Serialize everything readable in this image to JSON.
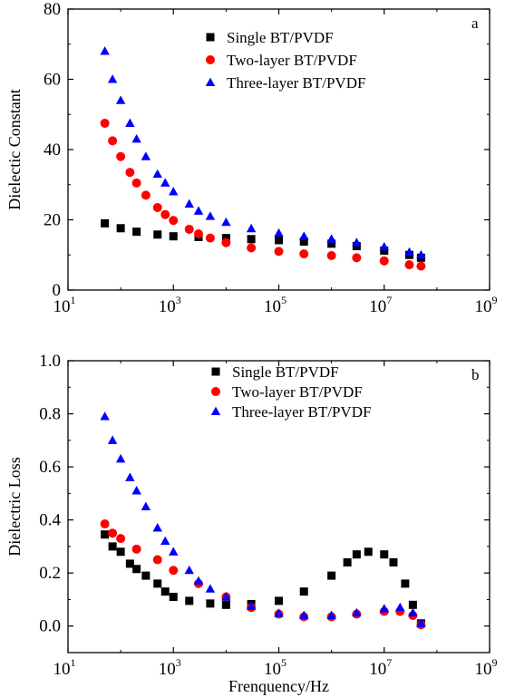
{
  "chart_data": [
    {
      "type": "scatter",
      "panel_label": "a",
      "xlabel": "",
      "ylabel": "Dielectic Constant",
      "xscale": "log",
      "xlim": [
        10,
        1000000000
      ],
      "ylim": [
        0,
        80
      ],
      "xticks": [
        {
          "base": "10",
          "exp": "1",
          "value": 10
        },
        {
          "base": "10",
          "exp": "3",
          "value": 1000
        },
        {
          "base": "10",
          "exp": "5",
          "value": 100000
        },
        {
          "base": "10",
          "exp": "7",
          "value": 10000000
        },
        {
          "base": "10",
          "exp": "9",
          "value": 1000000000
        }
      ],
      "yticks": [
        {
          "label": "0",
          "value": 0
        },
        {
          "label": "20",
          "value": 20
        },
        {
          "label": "40",
          "value": 40
        },
        {
          "label": "60",
          "value": 60
        },
        {
          "label": "80",
          "value": 80
        }
      ],
      "grid": false,
      "legend_position": "top-center",
      "series": [
        {
          "name": "Single BT/PVDF",
          "marker": "square",
          "color": "#000000",
          "points": [
            [
              50,
              19.0
            ],
            [
              100,
              17.6
            ],
            [
              200,
              16.6
            ],
            [
              500,
              15.8
            ],
            [
              1000,
              15.3
            ],
            [
              3000,
              15.1
            ],
            [
              10000,
              14.8
            ],
            [
              30000,
              14.5
            ],
            [
              100000,
              14.2
            ],
            [
              300000,
              13.8
            ],
            [
              1000000,
              13.2
            ],
            [
              3000000,
              12.5
            ],
            [
              10000000,
              11.2
            ],
            [
              30000000,
              10.0
            ],
            [
              50000000,
              9.2
            ]
          ]
        },
        {
          "name": "Two-layer BT/PVDF",
          "marker": "circle",
          "color": "#ff0000",
          "points": [
            [
              50,
              47.5
            ],
            [
              70,
              42.5
            ],
            [
              100,
              38.0
            ],
            [
              150,
              33.5
            ],
            [
              200,
              30.5
            ],
            [
              300,
              27.0
            ],
            [
              500,
              23.5
            ],
            [
              700,
              21.5
            ],
            [
              1000,
              19.8
            ],
            [
              2000,
              17.3
            ],
            [
              3000,
              16.0
            ],
            [
              5000,
              14.8
            ],
            [
              10000,
              13.5
            ],
            [
              30000,
              12.0
            ],
            [
              100000,
              11.0
            ],
            [
              300000,
              10.3
            ],
            [
              1000000,
              9.8
            ],
            [
              3000000,
              9.2
            ],
            [
              10000000,
              8.3
            ],
            [
              30000000,
              7.2
            ],
            [
              50000000,
              6.8
            ]
          ]
        },
        {
          "name": "Three-layer BT/PVDF",
          "marker": "triangle",
          "color": "#0000ff",
          "points": [
            [
              50,
              68.0
            ],
            [
              70,
              60.0
            ],
            [
              100,
              54.0
            ],
            [
              150,
              47.5
            ],
            [
              200,
              43.0
            ],
            [
              300,
              38.0
            ],
            [
              500,
              33.0
            ],
            [
              700,
              30.5
            ],
            [
              1000,
              28.0
            ],
            [
              2000,
              24.5
            ],
            [
              3000,
              22.5
            ],
            [
              5000,
              21.0
            ],
            [
              10000,
              19.3
            ],
            [
              30000,
              17.5
            ],
            [
              100000,
              16.2
            ],
            [
              300000,
              15.3
            ],
            [
              1000000,
              14.5
            ],
            [
              3000000,
              13.5
            ],
            [
              10000000,
              12.3
            ],
            [
              30000000,
              10.8
            ],
            [
              50000000,
              10.0
            ]
          ]
        }
      ]
    },
    {
      "type": "scatter",
      "panel_label": "b",
      "xlabel": "Frenquency/Hz",
      "ylabel": "Dielectric Loss",
      "xscale": "log",
      "xlim": [
        10,
        1000000000
      ],
      "ylim": [
        -0.1,
        1.0
      ],
      "xticks": [
        {
          "base": "10",
          "exp": "1",
          "value": 10
        },
        {
          "base": "10",
          "exp": "3",
          "value": 1000
        },
        {
          "base": "10",
          "exp": "5",
          "value": 100000
        },
        {
          "base": "10",
          "exp": "7",
          "value": 10000000
        },
        {
          "base": "10",
          "exp": "9",
          "value": 1000000000
        }
      ],
      "yticks": [
        {
          "label": "0.0",
          "value": 0.0
        },
        {
          "label": "0.2",
          "value": 0.2
        },
        {
          "label": "0.4",
          "value": 0.4
        },
        {
          "label": "0.6",
          "value": 0.6
        },
        {
          "label": "0.8",
          "value": 0.8
        },
        {
          "label": "1.0",
          "value": 1.0
        }
      ],
      "grid": false,
      "legend_position": "top-center",
      "series": [
        {
          "name": "Single BT/PVDF",
          "marker": "square",
          "color": "#000000",
          "points": [
            [
              50,
              0.345
            ],
            [
              70,
              0.3
            ],
            [
              100,
              0.28
            ],
            [
              150,
              0.235
            ],
            [
              200,
              0.215
            ],
            [
              300,
              0.19
            ],
            [
              500,
              0.16
            ],
            [
              700,
              0.13
            ],
            [
              1000,
              0.11
            ],
            [
              2000,
              0.095
            ],
            [
              5000,
              0.085
            ],
            [
              10000,
              0.08
            ],
            [
              30000,
              0.083
            ],
            [
              100000,
              0.095
            ],
            [
              300000,
              0.13
            ],
            [
              1000000,
              0.19
            ],
            [
              2000000,
              0.24
            ],
            [
              3000000,
              0.27
            ],
            [
              5000000,
              0.28
            ],
            [
              10000000,
              0.27
            ],
            [
              15000000,
              0.24
            ],
            [
              25000000,
              0.16
            ],
            [
              35000000,
              0.08
            ],
            [
              50000000,
              0.01
            ]
          ]
        },
        {
          "name": "Two-layer BT/PVDF",
          "marker": "circle",
          "color": "#ff0000",
          "points": [
            [
              50,
              0.385
            ],
            [
              70,
              0.35
            ],
            [
              100,
              0.33
            ],
            [
              200,
              0.29
            ],
            [
              500,
              0.25
            ],
            [
              1000,
              0.21
            ],
            [
              3000,
              0.16
            ],
            [
              10000,
              0.11
            ],
            [
              30000,
              0.07
            ],
            [
              100000,
              0.045
            ],
            [
              300000,
              0.035
            ],
            [
              1000000,
              0.035
            ],
            [
              3000000,
              0.045
            ],
            [
              10000000,
              0.055
            ],
            [
              20000000,
              0.055
            ],
            [
              35000000,
              0.04
            ],
            [
              50000000,
              0.005
            ]
          ]
        },
        {
          "name": "Three-layer BT/PVDF",
          "marker": "triangle",
          "color": "#0000ff",
          "points": [
            [
              50,
              0.79
            ],
            [
              70,
              0.7
            ],
            [
              100,
              0.63
            ],
            [
              150,
              0.56
            ],
            [
              200,
              0.51
            ],
            [
              300,
              0.45
            ],
            [
              500,
              0.37
            ],
            [
              700,
              0.32
            ],
            [
              1000,
              0.28
            ],
            [
              2000,
              0.21
            ],
            [
              3000,
              0.17
            ],
            [
              5000,
              0.14
            ],
            [
              10000,
              0.11
            ],
            [
              30000,
              0.075
            ],
            [
              100000,
              0.048
            ],
            [
              300000,
              0.04
            ],
            [
              1000000,
              0.04
            ],
            [
              3000000,
              0.05
            ],
            [
              10000000,
              0.065
            ],
            [
              20000000,
              0.07
            ],
            [
              35000000,
              0.05
            ],
            [
              50000000,
              0.01
            ]
          ]
        }
      ]
    }
  ]
}
